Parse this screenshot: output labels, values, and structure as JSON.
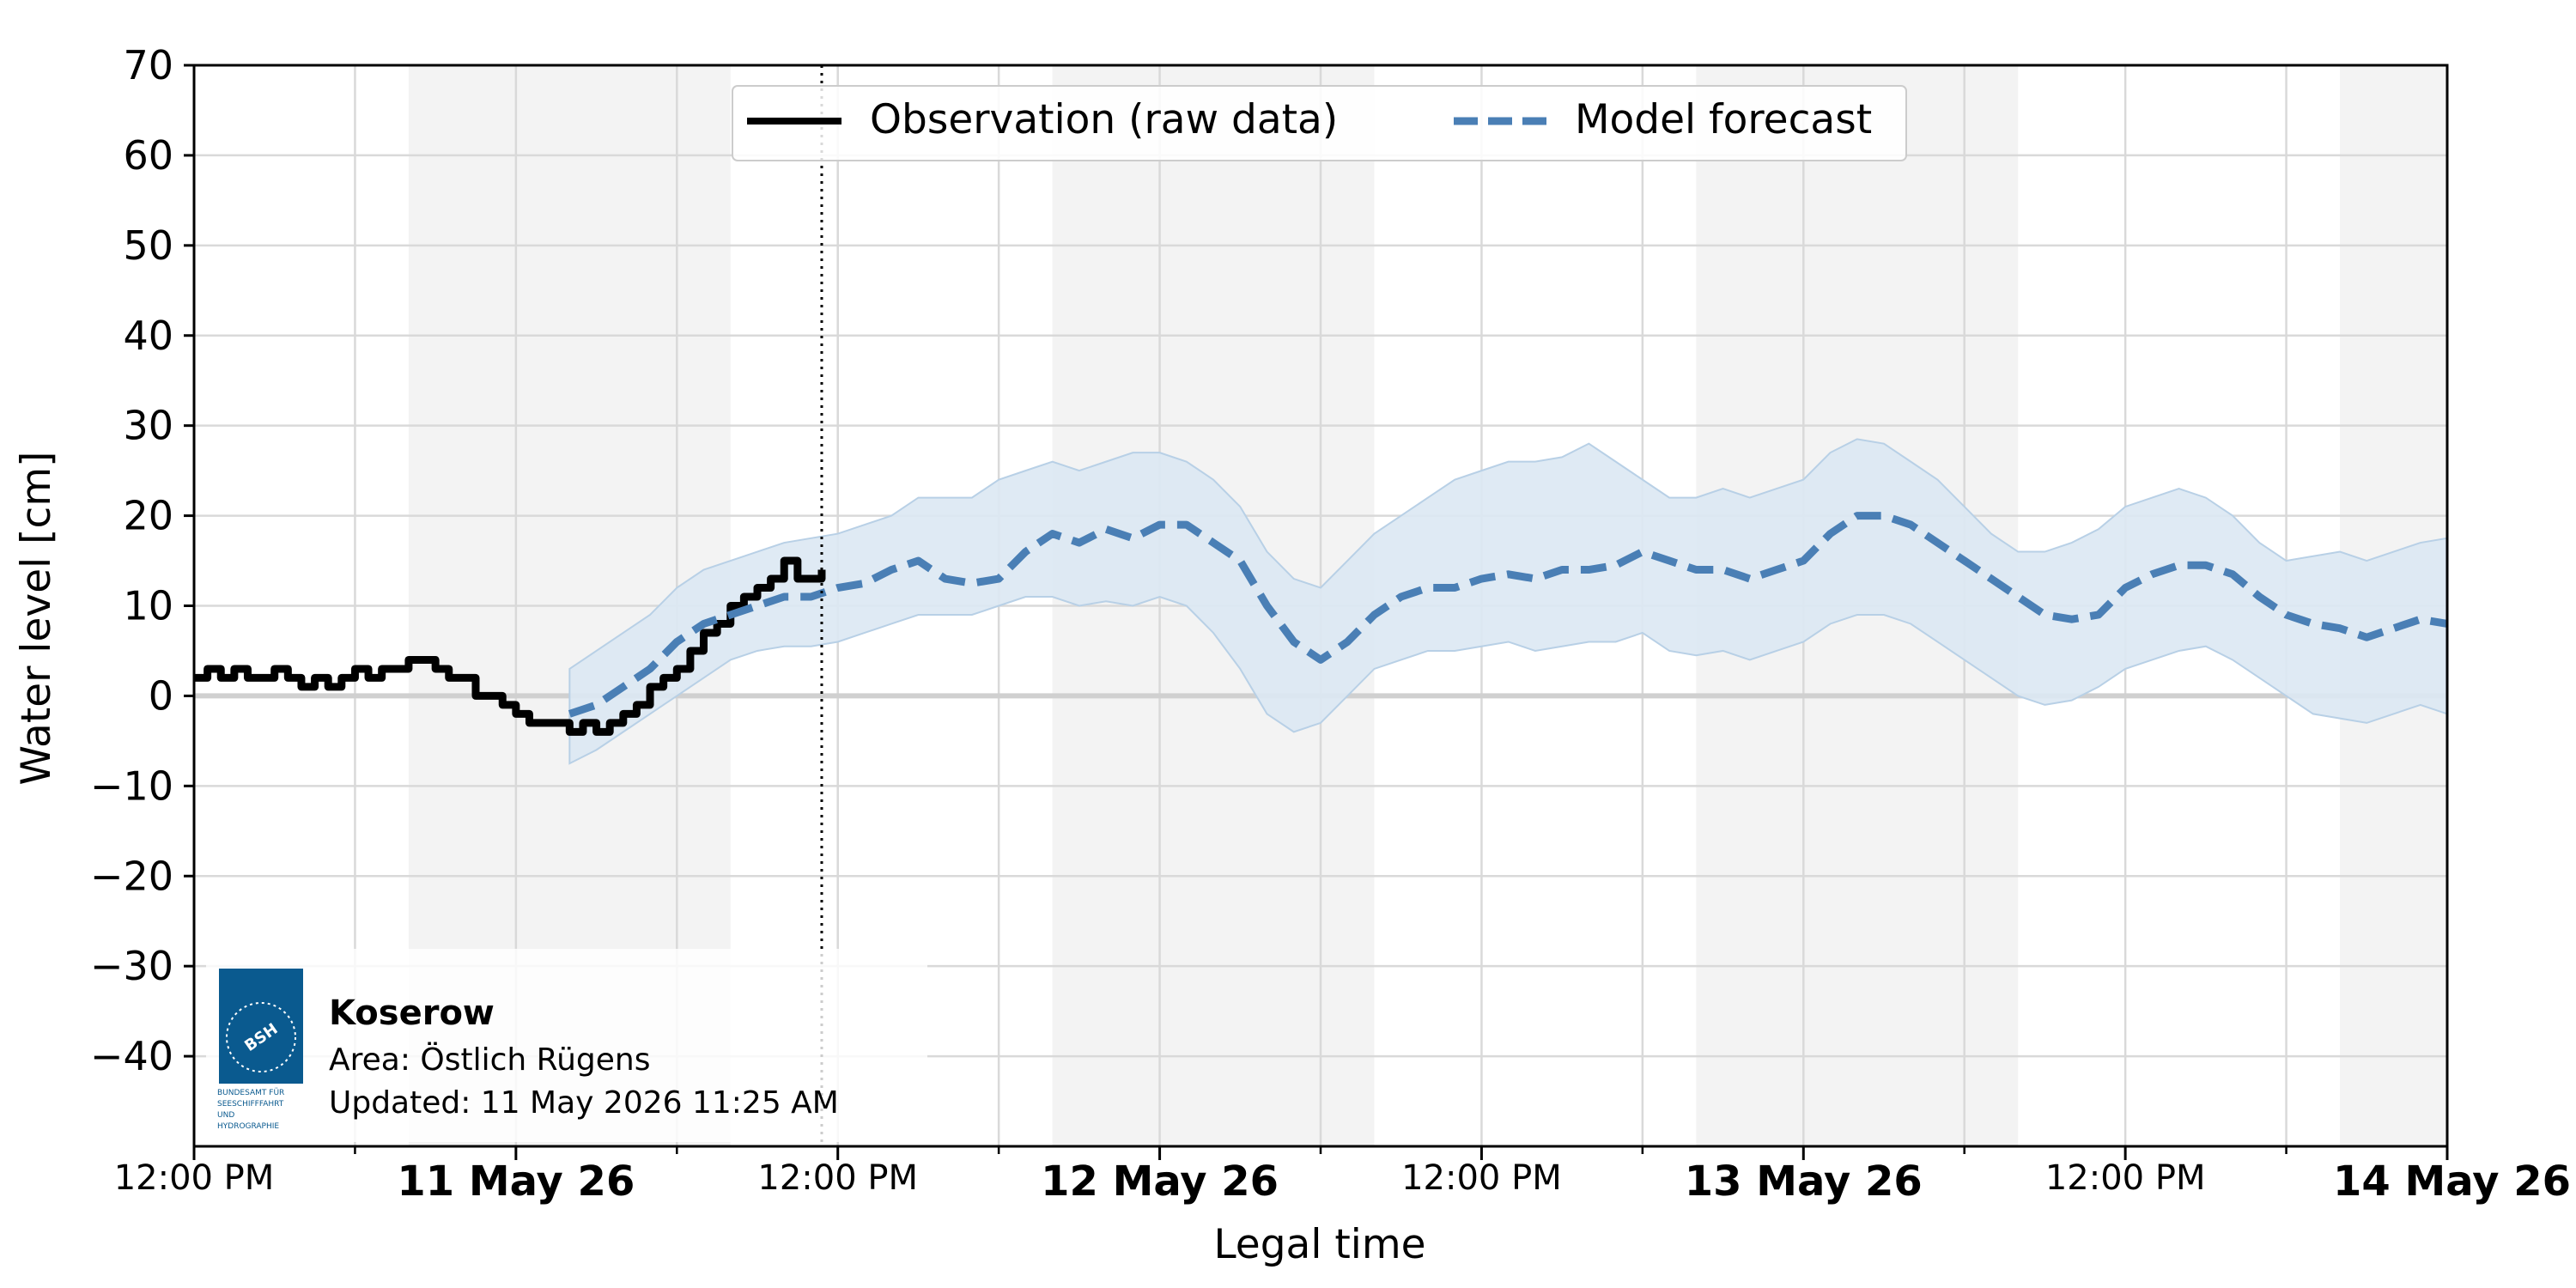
{
  "colors": {
    "observation": "#000000",
    "forecast": "#4a7fb5",
    "band": "#dbe8f3",
    "band_edge": "#b8d0e6",
    "night_shade": "#f3f3f3",
    "grid": "#d9d9d9"
  },
  "legend": {
    "observation_label": "Observation (raw data)",
    "forecast_label": "Model forecast"
  },
  "info_box": {
    "station": "Koserow",
    "area": "Area: Östlich Rügens",
    "updated": "Updated: 11 May 2026 11:25 AM",
    "logo_text": "BSH",
    "logo_caption": [
      "BUNDESAMT FÜR",
      "SEESCHIFFFAHRT",
      "UND",
      "HYDROGRAPHIE"
    ],
    "logo_icon": "bsh-logo-icon"
  },
  "chart_data": {
    "type": "line",
    "xlabel": "Legal time",
    "ylabel": "Water level [cm]",
    "x_unit": "hours relative to 11 May 26 00:00",
    "xlim": [
      -12,
      72
    ],
    "ylim": [
      -50,
      70
    ],
    "yticks": [
      70,
      60,
      50,
      40,
      30,
      20,
      10,
      0,
      -10,
      -20,
      -30,
      -40
    ],
    "ytick_labels": [
      "70",
      "60",
      "50",
      "40",
      "30",
      "20",
      "10",
      "0",
      "−10",
      "−20",
      "−30",
      "−40"
    ],
    "xticks": [
      {
        "x": -12,
        "label": "12:00 PM",
        "bold": false
      },
      {
        "x": 0,
        "label": "11 May 26",
        "bold": true
      },
      {
        "x": 12,
        "label": "12:00 PM",
        "bold": false
      },
      {
        "x": 24,
        "label": "12 May 26",
        "bold": true
      },
      {
        "x": 36,
        "label": "12:00 PM",
        "bold": false
      },
      {
        "x": 48,
        "label": "13 May 26",
        "bold": true
      },
      {
        "x": 60,
        "label": "12:00 PM",
        "bold": false
      },
      {
        "x": 72,
        "label": "14 May 26",
        "bold": true
      }
    ],
    "minor_xticks": [
      -6,
      6,
      18,
      30,
      42,
      54,
      66
    ],
    "grid": true,
    "legend_position": "top-center",
    "current_time_x": 11.4,
    "night_shading": [
      [
        -4,
        8
      ],
      [
        20,
        32
      ],
      [
        44,
        56
      ],
      [
        68,
        72
      ]
    ],
    "series": [
      {
        "name": "Observation (raw data)",
        "style": "solid",
        "x": [
          -12,
          -11.5,
          -11,
          -10.5,
          -10,
          -9.5,
          -9,
          -8.5,
          -8,
          -7.5,
          -7,
          -6.5,
          -6,
          -5.5,
          -5,
          -4.5,
          -4,
          -3.5,
          -3,
          -2.5,
          -2,
          -1.5,
          -1,
          -0.5,
          0,
          0.5,
          1,
          1.5,
          2,
          2.5,
          3,
          3.5,
          4,
          4.5,
          5,
          5.5,
          6,
          6.5,
          7,
          7.5,
          8,
          8.5,
          9,
          9.5,
          10,
          10.5,
          11,
          11.4
        ],
        "y": [
          2,
          3,
          2,
          3,
          2,
          2,
          3,
          2,
          1,
          2,
          1,
          2,
          3,
          2,
          3,
          3,
          4,
          4,
          3,
          2,
          2,
          0,
          0,
          -1,
          -2,
          -3,
          -3,
          -3,
          -4,
          -3,
          -4,
          -3,
          -2,
          -1,
          1,
          2,
          3,
          5,
          7,
          8,
          10,
          11,
          12,
          13,
          15,
          13,
          13,
          14
        ]
      },
      {
        "name": "Model forecast",
        "style": "dashed",
        "x": [
          2,
          3,
          4,
          5,
          6,
          7,
          8,
          9,
          10,
          11,
          12,
          13,
          14,
          15,
          16,
          17,
          18,
          19,
          20,
          21,
          22,
          23,
          24,
          25,
          26,
          27,
          28,
          29,
          30,
          31,
          32,
          33,
          34,
          35,
          36,
          37,
          38,
          39,
          40,
          41,
          42,
          43,
          44,
          45,
          46,
          47,
          48,
          49,
          50,
          51,
          52,
          53,
          54,
          55,
          56,
          57,
          58,
          59,
          60,
          61,
          62,
          63,
          64,
          65,
          66,
          67,
          68,
          69,
          70,
          71,
          72
        ],
        "y": [
          -2,
          -1,
          1,
          3,
          6,
          8,
          9,
          10,
          11,
          11,
          12,
          12.5,
          14,
          15,
          13,
          12.5,
          13,
          16,
          18,
          17,
          18.5,
          17.5,
          19,
          19,
          17,
          15,
          10,
          6,
          4,
          6,
          9,
          11,
          12,
          12,
          13,
          13.5,
          13,
          14,
          14,
          14.5,
          16,
          15,
          14,
          14,
          13,
          14,
          15,
          18,
          20,
          20,
          19,
          17,
          15,
          13,
          11,
          9,
          8.5,
          9,
          12,
          13.5,
          14.5,
          14.5,
          13.5,
          11,
          9,
          8,
          7.5,
          6.5,
          7.5,
          8.5,
          8
        ]
      }
    ],
    "uncertainty_band": {
      "x": [
        2,
        3,
        4,
        5,
        6,
        7,
        8,
        9,
        10,
        11,
        12,
        13,
        14,
        15,
        16,
        17,
        18,
        19,
        20,
        21,
        22,
        23,
        24,
        25,
        26,
        27,
        28,
        29,
        30,
        31,
        32,
        33,
        34,
        35,
        36,
        37,
        38,
        39,
        40,
        41,
        42,
        43,
        44,
        45,
        46,
        47,
        48,
        49,
        50,
        51,
        52,
        53,
        54,
        55,
        56,
        57,
        58,
        59,
        60,
        61,
        62,
        63,
        64,
        65,
        66,
        67,
        68,
        69,
        70,
        71,
        72
      ],
      "lower": [
        -7.5,
        -6,
        -4,
        -2,
        0,
        2,
        4,
        5,
        5.5,
        5.5,
        6,
        7,
        8,
        9,
        9,
        9,
        10,
        11,
        11,
        10,
        10.5,
        10,
        11,
        10,
        7,
        3,
        -2,
        -4,
        -3,
        0,
        3,
        4,
        5,
        5,
        5.5,
        6,
        5,
        5.5,
        6,
        6,
        7,
        5,
        4.5,
        5,
        4,
        5,
        6,
        8,
        9,
        9,
        8,
        6,
        4,
        2,
        0,
        -1,
        -0.5,
        1,
        3,
        4,
        5,
        5.5,
        4,
        2,
        0,
        -2,
        -2.5,
        -3,
        -2,
        -1,
        -2
      ],
      "upper": [
        3,
        5,
        7,
        9,
        12,
        14,
        15,
        16,
        17,
        17.5,
        18,
        19,
        20,
        22,
        22,
        22,
        24,
        25,
        26,
        25,
        26,
        27,
        27,
        26,
        24,
        21,
        16,
        13,
        12,
        15,
        18,
        20,
        22,
        24,
        25,
        26,
        26,
        26.5,
        28,
        26,
        24,
        22,
        22,
        23,
        22,
        23,
        24,
        27,
        28.5,
        28,
        26,
        24,
        21,
        18,
        16,
        16,
        17,
        18.5,
        21,
        22,
        23,
        22,
        20,
        17,
        15,
        15.5,
        16,
        15,
        16,
        17,
        17.5
      ]
    }
  }
}
